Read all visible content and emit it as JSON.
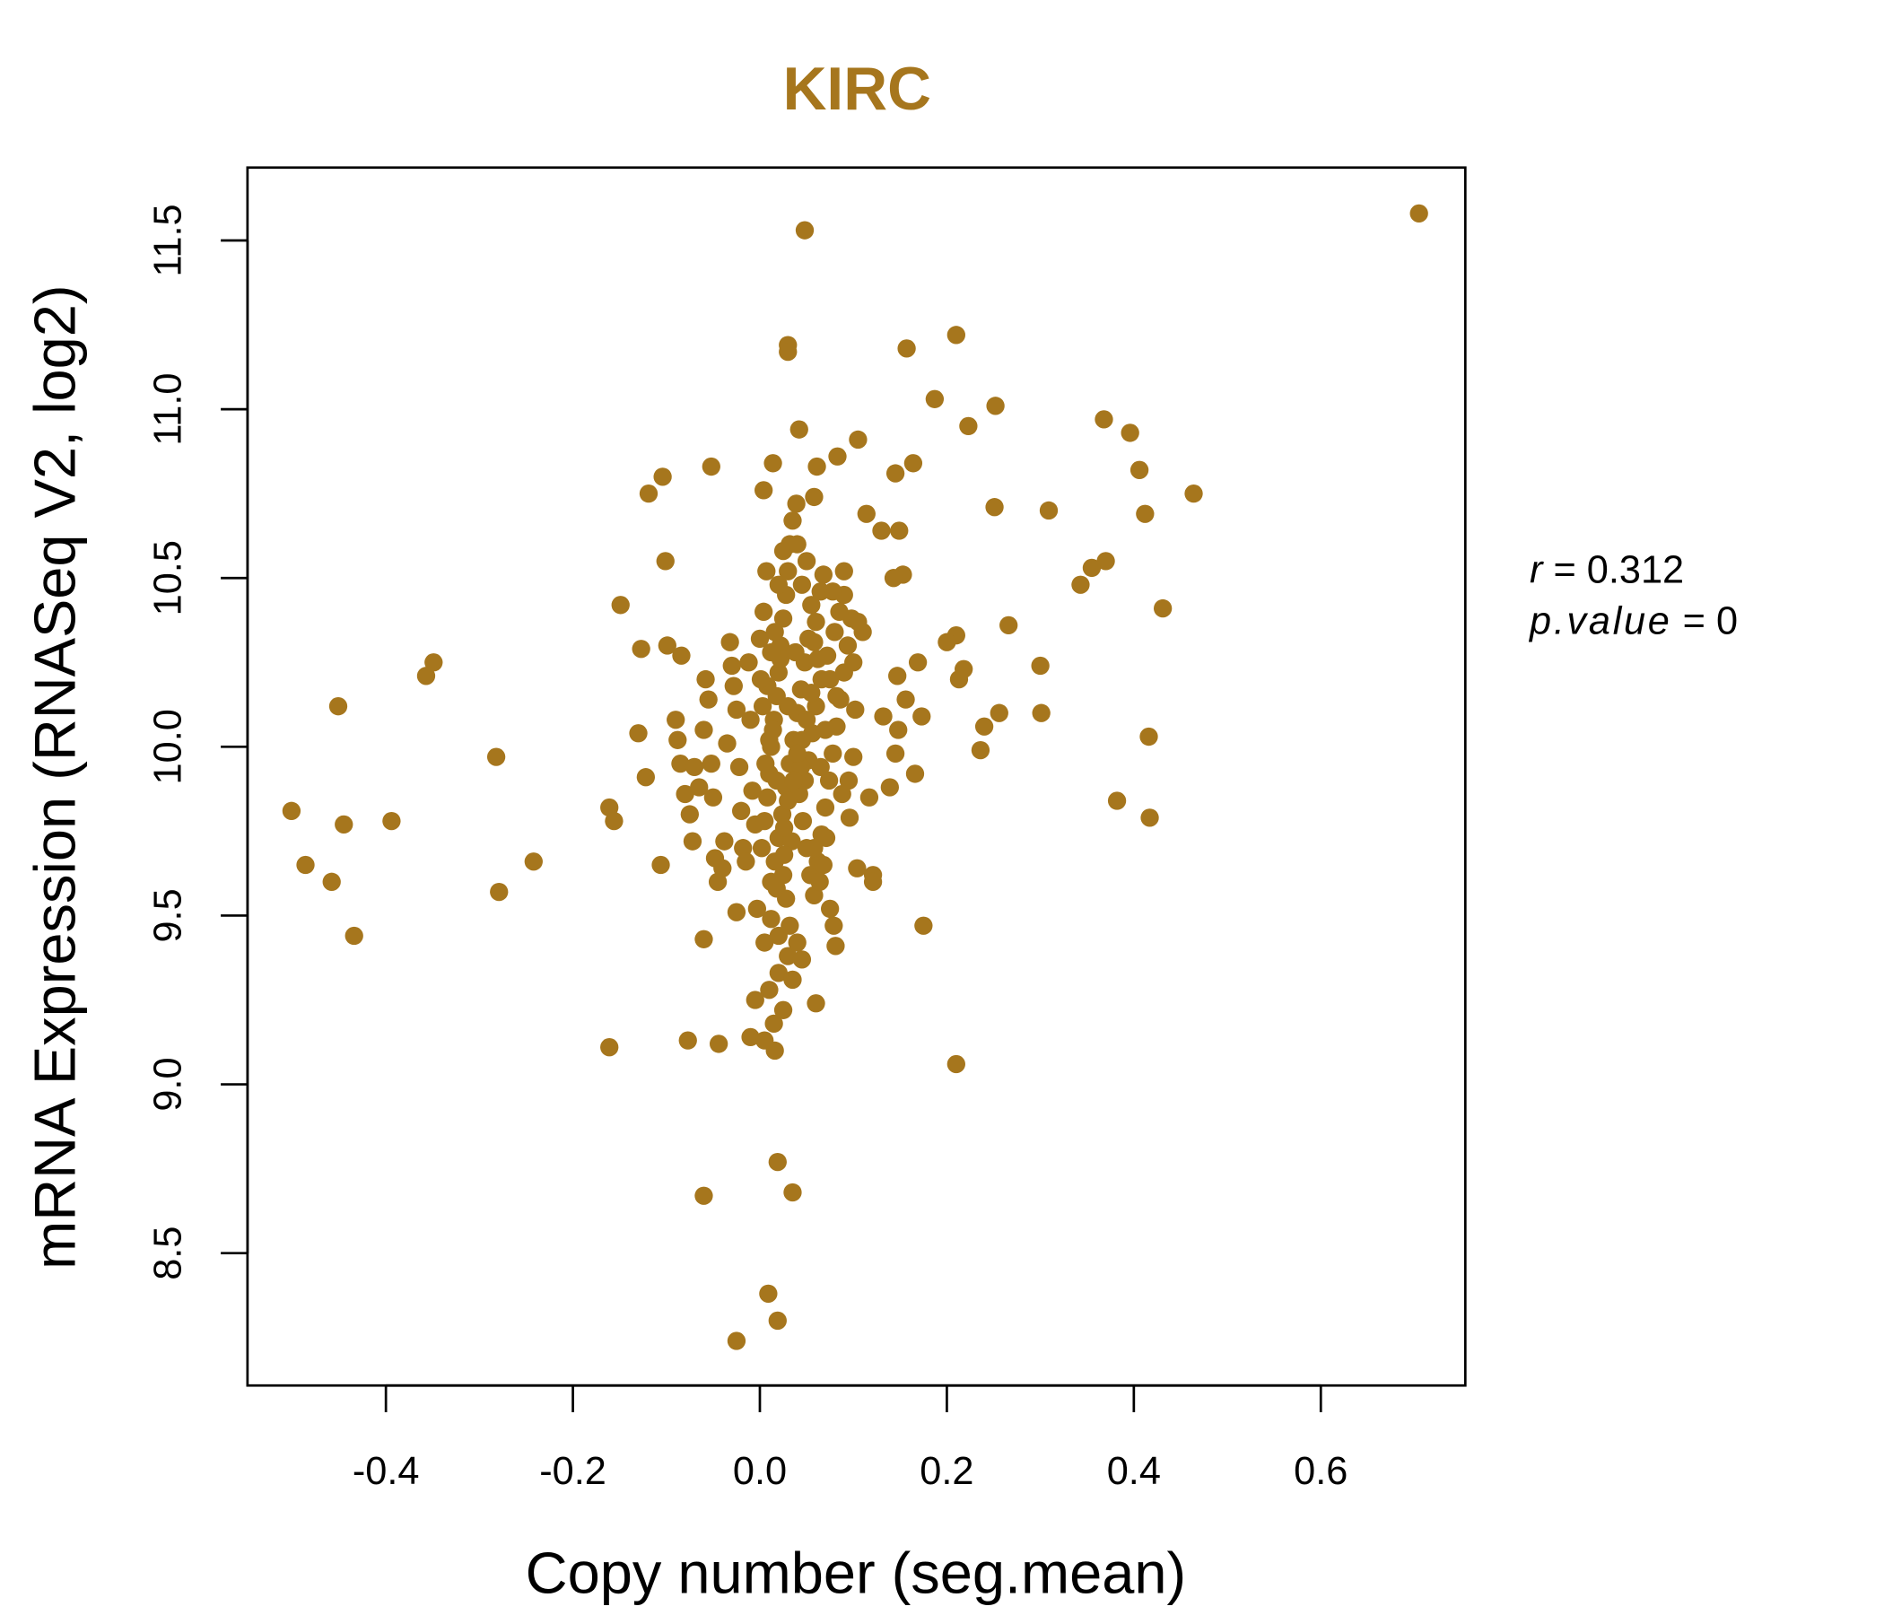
{
  "chart_data": {
    "type": "scatter",
    "title": "KIRC",
    "xlabel": "Copy number (seg.mean)",
    "ylabel": "mRNA Expression (RNASeq V2, log2)",
    "xlim": [
      -0.55,
      0.755
    ],
    "ylim": [
      8.18,
      11.79
    ],
    "xticks": [
      -0.4,
      -0.2,
      0.0,
      0.2,
      0.4,
      0.6
    ],
    "xtick_labels": [
      "-0.4",
      "-0.2",
      "0.0",
      "0.2",
      "0.4",
      "0.6"
    ],
    "yticks": [
      8.5,
      9.0,
      9.5,
      10.0,
      10.5,
      11.0,
      11.5
    ],
    "ytick_labels": [
      "8.5",
      "9.0",
      "9.5",
      "10.0",
      "10.5",
      "11.0",
      "11.5"
    ],
    "grid": false,
    "point_color": "#A6761D",
    "title_color": "#A6761D",
    "annotations": {
      "r_label": "r",
      "r_value": "0.312",
      "p_label": "p.value",
      "p_value": "0"
    },
    "points": [
      [
        0.705,
        11.58
      ],
      [
        0.048,
        11.53
      ],
      [
        0.03,
        11.19
      ],
      [
        0.03,
        11.17
      ],
      [
        0.21,
        11.22
      ],
      [
        0.157,
        11.18
      ],
      [
        0.187,
        11.03
      ],
      [
        0.252,
        11.01
      ],
      [
        0.223,
        10.95
      ],
      [
        0.368,
        10.97
      ],
      [
        0.396,
        10.93
      ],
      [
        0.406,
        10.82
      ],
      [
        0.464,
        10.75
      ],
      [
        0.412,
        10.69
      ],
      [
        0.309,
        10.7
      ],
      [
        0.251,
        10.71
      ],
      [
        0.431,
        10.41
      ],
      [
        0.37,
        10.55
      ],
      [
        0.355,
        10.53
      ],
      [
        0.343,
        10.48
      ],
      [
        0.266,
        10.36
      ],
      [
        0.3,
        10.24
      ],
      [
        0.301,
        10.1
      ],
      [
        0.416,
        10.03
      ],
      [
        0.382,
        9.84
      ],
      [
        0.417,
        9.79
      ],
      [
        0.236,
        9.99
      ],
      [
        0.24,
        10.06
      ],
      [
        0.256,
        10.1
      ],
      [
        0.21,
        9.06
      ],
      [
        0.175,
        9.47
      ],
      [
        -0.501,
        9.81
      ],
      [
        -0.486,
        9.65
      ],
      [
        -0.458,
        9.6
      ],
      [
        -0.445,
        9.77
      ],
      [
        -0.434,
        9.44
      ],
      [
        -0.451,
        10.12
      ],
      [
        -0.394,
        9.78
      ],
      [
        -0.349,
        10.25
      ],
      [
        -0.357,
        10.21
      ],
      [
        -0.282,
        9.97
      ],
      [
        -0.279,
        9.57
      ],
      [
        -0.242,
        9.66
      ],
      [
        -0.161,
        9.11
      ],
      [
        -0.161,
        9.82
      ],
      [
        -0.156,
        9.78
      ],
      [
        -0.149,
        10.42
      ],
      [
        -0.127,
        10.29
      ],
      [
        -0.13,
        10.04
      ],
      [
        -0.122,
        9.91
      ],
      [
        -0.119,
        10.75
      ],
      [
        -0.104,
        10.8
      ],
      [
        -0.101,
        10.55
      ],
      [
        -0.099,
        10.3
      ],
      [
        -0.106,
        9.65
      ],
      [
        -0.084,
        10.27
      ],
      [
        -0.052,
        10.83
      ],
      [
        -0.077,
        9.13
      ],
      [
        -0.044,
        9.12
      ],
      [
        -0.06,
        8.67
      ],
      [
        0.019,
        8.77
      ],
      [
        0.035,
        8.68
      ],
      [
        0.009,
        8.38
      ],
      [
        0.019,
        8.3
      ],
      [
        -0.025,
        8.24
      ],
      [
        0.016,
        9.1
      ],
      [
        0.06,
        9.24
      ],
      [
        0.081,
        9.41
      ],
      [
        -0.06,
        9.43
      ],
      [
        0.042,
        10.94
      ],
      [
        0.105,
        10.91
      ],
      [
        0.083,
        10.86
      ],
      [
        0.164,
        10.84
      ],
      [
        0.014,
        10.84
      ],
      [
        0.061,
        10.83
      ],
      [
        0.145,
        10.81
      ],
      [
        0.004,
        10.76
      ],
      [
        0.058,
        10.74
      ],
      [
        0.039,
        10.72
      ],
      [
        0.114,
        10.69
      ],
      [
        0.13,
        10.64
      ],
      [
        0.149,
        10.64
      ],
      [
        0.153,
        10.51
      ],
      [
        0.143,
        10.5
      ],
      [
        0.132,
        10.09
      ],
      [
        0.173,
        10.09
      ],
      [
        0.166,
        9.92
      ],
      [
        0.139,
        9.88
      ],
      [
        0.117,
        9.85
      ],
      [
        0.121,
        9.62
      ],
      [
        0.121,
        9.6
      ],
      [
        0.104,
        9.64
      ],
      [
        0.096,
        9.79
      ],
      [
        0.075,
        9.52
      ],
      [
        0.079,
        9.47
      ],
      [
        0.21,
        10.33
      ],
      [
        0.2,
        10.31
      ],
      [
        0.218,
        10.23
      ],
      [
        0.213,
        10.2
      ],
      [
        0.169,
        10.25
      ],
      [
        0.156,
        10.14
      ],
      [
        0.148,
        10.05
      ],
      [
        0.145,
        9.98
      ],
      [
        0.147,
        10.21
      ],
      [
        -0.09,
        10.08
      ],
      [
        -0.088,
        10.02
      ],
      [
        -0.085,
        9.95
      ],
      [
        -0.08,
        9.86
      ],
      [
        -0.075,
        9.8
      ],
      [
        -0.072,
        9.72
      ],
      [
        -0.07,
        9.94
      ],
      [
        -0.065,
        9.88
      ],
      [
        -0.06,
        10.05
      ],
      [
        -0.058,
        10.2
      ],
      [
        -0.055,
        10.14
      ],
      [
        -0.052,
        9.95
      ],
      [
        -0.05,
        9.85
      ],
      [
        -0.048,
        9.67
      ],
      [
        -0.045,
        9.6
      ],
      [
        -0.04,
        9.64
      ],
      [
        -0.038,
        9.72
      ],
      [
        -0.035,
        10.01
      ],
      [
        -0.032,
        10.31
      ],
      [
        -0.03,
        10.24
      ],
      [
        -0.028,
        10.18
      ],
      [
        -0.025,
        10.11
      ],
      [
        -0.022,
        9.94
      ],
      [
        -0.02,
        9.81
      ],
      [
        -0.018,
        9.7
      ],
      [
        -0.015,
        9.66
      ],
      [
        -0.012,
        10.25
      ],
      [
        -0.01,
        10.08
      ],
      [
        -0.008,
        9.87
      ],
      [
        -0.005,
        9.77
      ],
      [
        -0.003,
        9.52
      ],
      [
        0.0,
        10.32
      ],
      [
        -0.025,
        9.51
      ],
      [
        -0.01,
        9.14
      ],
      [
        -0.005,
        9.25
      ],
      [
        0.005,
        9.13
      ],
      [
        0.01,
        9.28
      ],
      [
        0.015,
        9.18
      ],
      [
        0.02,
        9.33
      ],
      [
        0.025,
        9.22
      ],
      [
        0.03,
        9.38
      ],
      [
        0.035,
        9.31
      ],
      [
        0.04,
        9.42
      ],
      [
        0.045,
        9.37
      ],
      [
        0.012,
        9.49
      ],
      [
        0.02,
        9.44
      ],
      [
        0.028,
        9.55
      ],
      [
        0.032,
        9.47
      ],
      [
        0.005,
        9.42
      ],
      [
        0.018,
        9.58
      ],
      [
        0.025,
        9.62
      ],
      [
        0.002,
        9.7
      ],
      [
        0.005,
        9.78
      ],
      [
        0.008,
        9.85
      ],
      [
        0.01,
        9.92
      ],
      [
        0.012,
        10.0
      ],
      [
        0.015,
        10.08
      ],
      [
        0.018,
        10.15
      ],
      [
        0.02,
        10.22
      ],
      [
        0.022,
        10.3
      ],
      [
        0.025,
        10.38
      ],
      [
        0.028,
        10.45
      ],
      [
        0.03,
        10.52
      ],
      [
        0.032,
        10.6
      ],
      [
        0.035,
        10.67
      ],
      [
        0.004,
        10.4
      ],
      [
        0.007,
        10.52
      ],
      [
        0.02,
        10.48
      ],
      [
        0.025,
        10.58
      ],
      [
        0.04,
        10.6
      ],
      [
        0.045,
        10.48
      ],
      [
        0.05,
        10.55
      ],
      [
        0.055,
        10.42
      ],
      [
        0.06,
        10.37
      ],
      [
        0.065,
        10.46
      ],
      [
        0.068,
        10.51
      ],
      [
        0.012,
        9.6
      ],
      [
        0.016,
        9.66
      ],
      [
        0.02,
        9.73
      ],
      [
        0.024,
        9.8
      ],
      [
        0.028,
        9.88
      ],
      [
        0.032,
        9.95
      ],
      [
        0.036,
        10.02
      ],
      [
        0.04,
        10.1
      ],
      [
        0.044,
        10.17
      ],
      [
        0.048,
        10.25
      ],
      [
        0.052,
        10.32
      ],
      [
        0.008,
        10.18
      ],
      [
        0.014,
        10.05
      ],
      [
        0.03,
        10.12
      ],
      [
        0.038,
        10.28
      ],
      [
        0.042,
        9.86
      ],
      [
        0.046,
        9.78
      ],
      [
        0.05,
        9.7
      ],
      [
        0.054,
        9.62
      ],
      [
        0.058,
        9.56
      ],
      [
        0.062,
        9.66
      ],
      [
        0.066,
        9.74
      ],
      [
        0.07,
        9.82
      ],
      [
        0.074,
        9.9
      ],
      [
        0.078,
        9.98
      ],
      [
        0.082,
        10.06
      ],
      [
        0.086,
        10.14
      ],
      [
        0.09,
        10.22
      ],
      [
        0.094,
        10.3
      ],
      [
        0.098,
        10.38
      ],
      [
        0.085,
        10.4
      ],
      [
        0.09,
        10.45
      ],
      [
        0.09,
        10.52
      ],
      [
        0.078,
        10.46
      ],
      [
        0.08,
        10.34
      ],
      [
        0.072,
        10.27
      ],
      [
        0.066,
        10.2
      ],
      [
        0.06,
        10.12
      ],
      [
        0.056,
        10.04
      ],
      [
        0.052,
        9.96
      ],
      [
        0.048,
        9.9
      ],
      [
        0.044,
        9.94
      ],
      [
        0.034,
        9.72
      ],
      [
        0.026,
        9.68
      ],
      [
        0.018,
        9.9
      ],
      [
        0.01,
        10.02
      ],
      [
        0.1,
        10.25
      ],
      [
        0.102,
        10.11
      ],
      [
        0.1,
        9.97
      ],
      [
        0.095,
        9.9
      ],
      [
        0.088,
        9.86
      ],
      [
        0.082,
        10.15
      ],
      [
        0.075,
        10.2
      ],
      [
        0.07,
        10.05
      ],
      [
        0.065,
        9.94
      ],
      [
        0.062,
        10.26
      ],
      [
        0.058,
        10.31
      ],
      [
        0.055,
        10.16
      ],
      [
        0.05,
        10.08
      ],
      [
        0.045,
        10.02
      ],
      [
        0.04,
        9.98
      ],
      [
        0.036,
        9.9
      ],
      [
        0.03,
        9.84
      ],
      [
        0.026,
        9.76
      ],
      [
        0.022,
        10.26
      ],
      [
        0.016,
        10.34
      ],
      [
        0.012,
        10.28
      ],
      [
        0.006,
        9.95
      ],
      [
        0.003,
        10.12
      ],
      [
        0.001,
        10.2
      ],
      [
        0.11,
        10.34
      ],
      [
        0.105,
        10.37
      ],
      [
        0.071,
        9.73
      ],
      [
        0.068,
        9.65
      ],
      [
        0.064,
        9.6
      ],
      [
        0.058,
        9.7
      ]
    ]
  }
}
